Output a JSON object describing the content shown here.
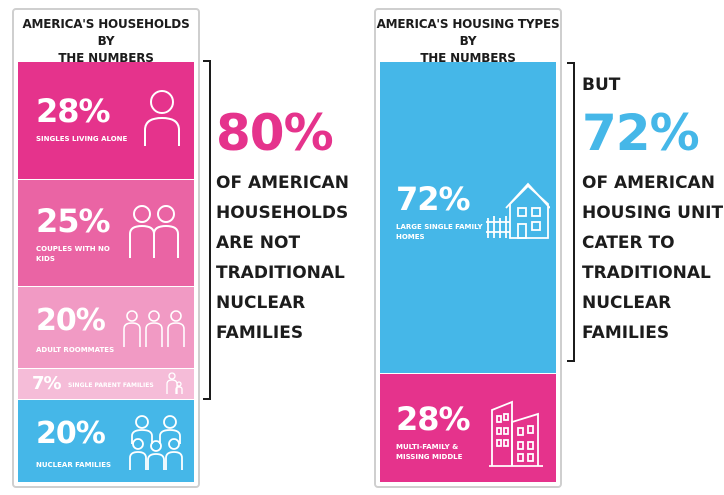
{
  "colors": {
    "magenta": "#e5338c",
    "pink_medium": "#ea64a4",
    "pink_light": "#f19ac4",
    "pink_pale": "#f5bcd8",
    "blue": "#45b7e8",
    "text_dark": "#1c1c1c"
  },
  "households": {
    "title_line1": "AMERICA'S HOUSEHOLDS BY",
    "title_line2": "THE NUMBERS",
    "items": [
      {
        "pct": "28%",
        "label_line1": "SINGLES LIVING ALONE",
        "label_line2": "",
        "icon": "person-icon"
      },
      {
        "pct": "25%",
        "label_line1": "COUPLES WITH NO",
        "label_line2": "KIDS",
        "icon": "couple-icon"
      },
      {
        "pct": "20%",
        "label_line1": "ADULT ROOMMATES",
        "label_line2": "",
        "icon": "roommates-icon"
      },
      {
        "pct": "7%",
        "label_line1": "SINGLE PARENT FAMILIES",
        "label_line2": "",
        "icon": "parent-child-icon"
      },
      {
        "pct": "20%",
        "label_line1": "NUCLEAR FAMILIES",
        "label_line2": "",
        "icon": "family-icon"
      }
    ]
  },
  "households_statement": {
    "big": "80%",
    "lines": [
      "OF AMERICAN",
      "HOUSEHOLDS",
      "ARE NOT",
      "TRADITIONAL",
      "NUCLEAR",
      "FAMILIES"
    ]
  },
  "housing": {
    "title_line1": "AMERICA'S HOUSING TYPES BY",
    "title_line2": "THE NUMBERS",
    "items": [
      {
        "pct": "72%",
        "label_line1": "LARGE SINGLE FAMILY",
        "label_line2": "HOMES",
        "icon": "house-icon"
      },
      {
        "pct": "28%",
        "label_line1": "MULTI-FAMILY &",
        "label_line2": "MISSING MIDDLE",
        "icon": "apartment-buildings-icon"
      }
    ]
  },
  "housing_statement": {
    "prefix": "BUT",
    "big": "72%",
    "lines": [
      "OF AMERICAN",
      "HOUSING UNITS",
      "CATER TO",
      "TRADITIONAL",
      "NUCLEAR",
      "FAMILIES"
    ]
  }
}
